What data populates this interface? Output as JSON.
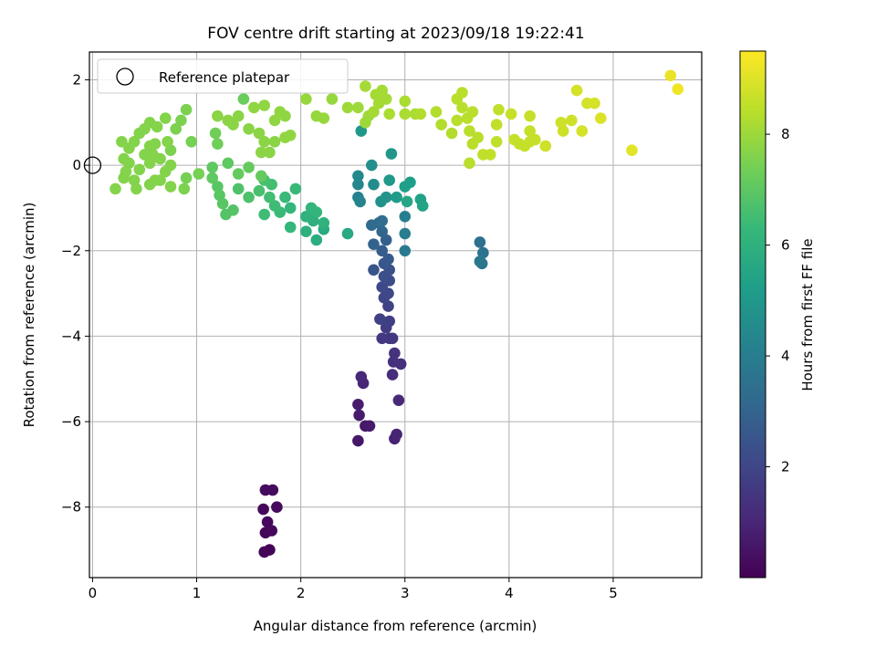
{
  "chart_data": {
    "type": "scatter",
    "title": "FOV centre drift starting at 2023/09/18 19:22:41",
    "xlabel": "Angular distance from reference (arcmin)",
    "ylabel": "Rotation from reference (arcmin)",
    "xlim": [
      -0.03,
      5.85
    ],
    "ylim": [
      -9.65,
      2.65
    ],
    "xticks": [
      "0",
      "1",
      "2",
      "3",
      "4",
      "5"
    ],
    "yticks": [
      "−8",
      "−6",
      "−4",
      "−2",
      "0",
      "2"
    ],
    "grid": true,
    "legend": {
      "position": "upper-left",
      "entries": [
        "Reference platepar"
      ]
    },
    "reference_point": {
      "x": 0,
      "y": 0,
      "marker": "open-circle"
    },
    "colorbar": {
      "label": "Hours from first FF file",
      "colormap": "viridis",
      "range": [
        0,
        9.5
      ],
      "ticks": [
        "2",
        "4",
        "6",
        "8"
      ]
    },
    "series": [
      {
        "color_by": "hours",
        "points": [
          [
            1.65,
            -9.05,
            0.1
          ],
          [
            1.7,
            -9.0,
            0.12
          ],
          [
            1.66,
            -8.6,
            0.15
          ],
          [
            1.72,
            -8.55,
            0.18
          ],
          [
            1.68,
            -8.35,
            0.2
          ],
          [
            1.64,
            -8.05,
            0.22
          ],
          [
            1.77,
            -8.0,
            0.25
          ],
          [
            1.66,
            -7.6,
            0.28
          ],
          [
            1.73,
            -7.6,
            0.3
          ],
          [
            2.55,
            -6.45,
            0.6
          ],
          [
            2.62,
            -6.1,
            0.65
          ],
          [
            2.66,
            -6.1,
            0.68
          ],
          [
            2.56,
            -5.85,
            0.7
          ],
          [
            2.55,
            -5.6,
            0.72
          ],
          [
            2.9,
            -6.4,
            0.9
          ],
          [
            2.92,
            -6.3,
            0.95
          ],
          [
            2.6,
            -5.1,
            1.0
          ],
          [
            2.58,
            -4.95,
            1.05
          ],
          [
            2.94,
            -5.5,
            1.1
          ],
          [
            2.88,
            -4.9,
            1.2
          ],
          [
            2.96,
            -4.65,
            1.3
          ],
          [
            2.89,
            -4.6,
            1.35
          ],
          [
            2.9,
            -4.4,
            1.4
          ],
          [
            2.85,
            -4.05,
            1.5
          ],
          [
            2.88,
            -4.05,
            1.55
          ],
          [
            2.78,
            -4.05,
            1.6
          ],
          [
            2.82,
            -3.8,
            1.7
          ],
          [
            2.85,
            -3.65,
            1.8
          ],
          [
            2.76,
            -3.6,
            1.85
          ],
          [
            2.84,
            -3.3,
            1.9
          ],
          [
            2.8,
            -3.1,
            2.0
          ],
          [
            2.84,
            -3.0,
            2.05
          ],
          [
            2.78,
            -2.85,
            2.1
          ],
          [
            2.85,
            -2.7,
            2.2
          ],
          [
            2.8,
            -2.6,
            2.3
          ],
          [
            2.85,
            -2.45,
            2.4
          ],
          [
            2.7,
            -2.45,
            2.5
          ],
          [
            2.8,
            -2.3,
            2.6
          ],
          [
            2.84,
            -2.2,
            2.7
          ],
          [
            2.78,
            -2.0,
            2.8
          ],
          [
            2.82,
            -1.75,
            2.9
          ],
          [
            2.7,
            -1.85,
            3.0
          ],
          [
            2.78,
            -1.55,
            3.1
          ],
          [
            2.75,
            -1.35,
            3.2
          ],
          [
            2.68,
            -1.4,
            3.3
          ],
          [
            2.78,
            -1.3,
            3.4
          ],
          [
            3.72,
            -1.8,
            3.5
          ],
          [
            3.75,
            -2.05,
            3.6
          ],
          [
            3.74,
            -2.3,
            3.7
          ],
          [
            3.72,
            -2.25,
            3.8
          ],
          [
            3.0,
            -2.0,
            3.9
          ],
          [
            3.0,
            -1.6,
            4.0
          ],
          [
            3.0,
            -1.2,
            4.1
          ],
          [
            2.55,
            -0.75,
            4.2
          ],
          [
            2.57,
            -0.85,
            4.3
          ],
          [
            2.55,
            -0.45,
            4.4
          ],
          [
            2.55,
            -0.25,
            4.5
          ],
          [
            2.7,
            -0.45,
            4.6
          ],
          [
            2.68,
            0.0,
            4.7
          ],
          [
            2.77,
            -0.85,
            4.8
          ],
          [
            2.82,
            -0.75,
            4.9
          ],
          [
            2.87,
            0.27,
            5.0
          ],
          [
            2.85,
            -0.35,
            5.1
          ],
          [
            2.92,
            -0.75,
            5.2
          ],
          [
            3.0,
            -0.5,
            5.3
          ],
          [
            3.05,
            -0.4,
            5.3
          ],
          [
            3.15,
            -0.8,
            5.4
          ],
          [
            3.17,
            -0.95,
            5.5
          ],
          [
            2.58,
            0.8,
            5.0
          ],
          [
            3.02,
            -0.85,
            5.6
          ],
          [
            2.45,
            -1.6,
            5.7
          ],
          [
            2.22,
            -1.5,
            5.8
          ],
          [
            2.15,
            -1.75,
            5.9
          ],
          [
            2.05,
            -1.55,
            6.0
          ],
          [
            2.12,
            -1.3,
            6.0
          ],
          [
            2.22,
            -1.35,
            6.1
          ],
          [
            2.05,
            -1.2,
            6.1
          ],
          [
            2.15,
            -1.1,
            6.2
          ],
          [
            2.1,
            -1.0,
            6.2
          ],
          [
            1.9,
            -1.45,
            6.3
          ],
          [
            1.9,
            -1.0,
            6.3
          ],
          [
            1.8,
            -1.1,
            6.4
          ],
          [
            1.85,
            -0.75,
            6.4
          ],
          [
            1.95,
            -0.55,
            6.4
          ],
          [
            1.65,
            -1.15,
            6.5
          ],
          [
            1.75,
            -0.95,
            6.5
          ],
          [
            1.7,
            -0.75,
            6.6
          ],
          [
            1.72,
            -0.45,
            6.6
          ],
          [
            1.65,
            -0.35,
            6.7
          ],
          [
            1.6,
            -0.6,
            6.7
          ],
          [
            1.5,
            -0.75,
            6.8
          ],
          [
            1.4,
            -0.55,
            6.8
          ],
          [
            1.35,
            -1.05,
            6.9
          ],
          [
            1.28,
            -1.15,
            6.9
          ],
          [
            1.25,
            -0.9,
            7.0
          ],
          [
            1.22,
            -0.7,
            7.0
          ],
          [
            1.2,
            -0.5,
            7.0
          ],
          [
            1.15,
            -0.3,
            7.1
          ],
          [
            1.15,
            -0.05,
            7.1
          ],
          [
            1.3,
            0.05,
            7.1
          ],
          [
            1.5,
            -0.05,
            7.2
          ],
          [
            1.62,
            -0.25,
            7.2
          ],
          [
            1.45,
            1.55,
            7.3
          ],
          [
            1.4,
            -0.2,
            7.2
          ],
          [
            1.18,
            0.75,
            7.4
          ],
          [
            1.2,
            0.5,
            7.4
          ],
          [
            1.02,
            -0.2,
            7.5
          ],
          [
            0.95,
            0.55,
            7.5
          ],
          [
            0.9,
            -0.3,
            7.5
          ],
          [
            0.88,
            -0.55,
            7.6
          ],
          [
            0.9,
            1.3,
            7.6
          ],
          [
            0.85,
            1.05,
            7.6
          ],
          [
            0.8,
            0.85,
            7.6
          ],
          [
            0.75,
            0.35,
            7.6
          ],
          [
            0.75,
            0.0,
            7.7
          ],
          [
            0.7,
            -0.15,
            7.7
          ],
          [
            0.75,
            -0.5,
            7.7
          ],
          [
            0.6,
            -0.35,
            7.7
          ],
          [
            0.55,
            -0.45,
            7.7
          ],
          [
            0.55,
            0.05,
            7.7
          ],
          [
            0.6,
            0.5,
            7.7
          ],
          [
            0.5,
            0.25,
            7.7
          ],
          [
            0.45,
            -0.1,
            7.7
          ],
          [
            0.4,
            -0.35,
            7.7
          ],
          [
            0.42,
            -0.55,
            7.7
          ],
          [
            0.3,
            -0.3,
            7.7
          ],
          [
            0.22,
            -0.55,
            7.7
          ],
          [
            0.3,
            0.15,
            7.7
          ],
          [
            0.35,
            0.4,
            7.7
          ],
          [
            0.4,
            0.55,
            7.7
          ],
          [
            0.45,
            0.75,
            7.7
          ],
          [
            0.5,
            0.85,
            7.7
          ],
          [
            0.55,
            1.0,
            7.7
          ],
          [
            0.62,
            0.9,
            7.7
          ],
          [
            0.7,
            1.1,
            7.7
          ],
          [
            0.35,
            0.05,
            7.7
          ],
          [
            0.65,
            0.15,
            7.7
          ],
          [
            0.55,
            0.45,
            7.7
          ],
          [
            0.28,
            0.55,
            7.7
          ],
          [
            0.32,
            -0.15,
            7.7
          ],
          [
            0.65,
            -0.35,
            7.7
          ],
          [
            0.72,
            0.55,
            7.7
          ],
          [
            0.58,
            0.25,
            7.7
          ],
          [
            1.2,
            1.15,
            7.8
          ],
          [
            1.3,
            1.05,
            7.8
          ],
          [
            1.4,
            1.15,
            7.8
          ],
          [
            1.35,
            0.95,
            7.8
          ],
          [
            1.5,
            0.85,
            7.8
          ],
          [
            1.6,
            0.75,
            7.8
          ],
          [
            1.65,
            0.55,
            7.8
          ],
          [
            1.7,
            0.3,
            7.8
          ],
          [
            1.62,
            0.3,
            7.8
          ],
          [
            1.75,
            0.55,
            7.8
          ],
          [
            1.55,
            1.35,
            7.9
          ],
          [
            1.65,
            1.4,
            7.9
          ],
          [
            1.75,
            1.05,
            7.9
          ],
          [
            1.8,
            1.25,
            7.9
          ],
          [
            1.85,
            1.15,
            7.9
          ],
          [
            1.9,
            0.7,
            7.9
          ],
          [
            1.85,
            0.65,
            7.9
          ],
          [
            2.05,
            1.55,
            8.0
          ],
          [
            2.15,
            1.15,
            8.0
          ],
          [
            2.22,
            1.1,
            8.0
          ],
          [
            2.3,
            1.55,
            8.0
          ],
          [
            2.45,
            1.35,
            8.1
          ],
          [
            2.55,
            1.35,
            8.1
          ],
          [
            2.62,
            1.0,
            8.1
          ],
          [
            2.65,
            1.15,
            8.1
          ],
          [
            2.7,
            1.25,
            8.2
          ],
          [
            2.75,
            1.45,
            8.2
          ],
          [
            2.72,
            1.65,
            8.2
          ],
          [
            2.78,
            1.75,
            8.2
          ],
          [
            2.82,
            1.55,
            8.2
          ],
          [
            2.62,
            1.85,
            8.2
          ],
          [
            2.85,
            1.2,
            8.3
          ],
          [
            3.0,
            1.5,
            8.3
          ],
          [
            3.0,
            1.2,
            8.3
          ],
          [
            3.1,
            1.2,
            8.3
          ],
          [
            3.15,
            1.2,
            8.4
          ],
          [
            3.3,
            1.25,
            8.4
          ],
          [
            3.35,
            0.95,
            8.4
          ],
          [
            3.45,
            0.75,
            8.4
          ],
          [
            3.5,
            1.05,
            8.5
          ],
          [
            3.5,
            1.55,
            8.5
          ],
          [
            3.55,
            1.35,
            8.5
          ],
          [
            3.55,
            1.7,
            8.5
          ],
          [
            3.6,
            1.1,
            8.5
          ],
          [
            3.65,
            1.25,
            8.5
          ],
          [
            3.62,
            0.8,
            8.5
          ],
          [
            3.65,
            0.5,
            8.5
          ],
          [
            3.62,
            0.05,
            8.5
          ],
          [
            3.7,
            0.65,
            8.5
          ],
          [
            3.75,
            0.25,
            8.6
          ],
          [
            3.82,
            0.25,
            8.6
          ],
          [
            3.88,
            0.55,
            8.6
          ],
          [
            3.88,
            0.95,
            8.6
          ],
          [
            3.9,
            1.3,
            8.6
          ],
          [
            4.02,
            1.2,
            8.7
          ],
          [
            4.05,
            0.6,
            8.7
          ],
          [
            4.1,
            0.5,
            8.7
          ],
          [
            4.15,
            0.45,
            8.7
          ],
          [
            4.2,
            0.55,
            8.7
          ],
          [
            4.2,
            0.8,
            8.7
          ],
          [
            4.2,
            1.15,
            8.7
          ],
          [
            4.25,
            0.6,
            8.7
          ],
          [
            4.35,
            0.45,
            8.8
          ],
          [
            4.5,
            1.0,
            8.8
          ],
          [
            4.52,
            0.8,
            8.8
          ],
          [
            4.6,
            1.05,
            8.8
          ],
          [
            4.65,
            1.75,
            8.9
          ],
          [
            4.7,
            0.8,
            8.9
          ],
          [
            4.75,
            1.45,
            8.9
          ],
          [
            4.82,
            1.45,
            8.9
          ],
          [
            4.88,
            1.1,
            9.0
          ],
          [
            5.18,
            0.35,
            9.1
          ],
          [
            5.55,
            2.1,
            9.2
          ],
          [
            5.62,
            1.78,
            9.3
          ]
        ]
      }
    ]
  }
}
